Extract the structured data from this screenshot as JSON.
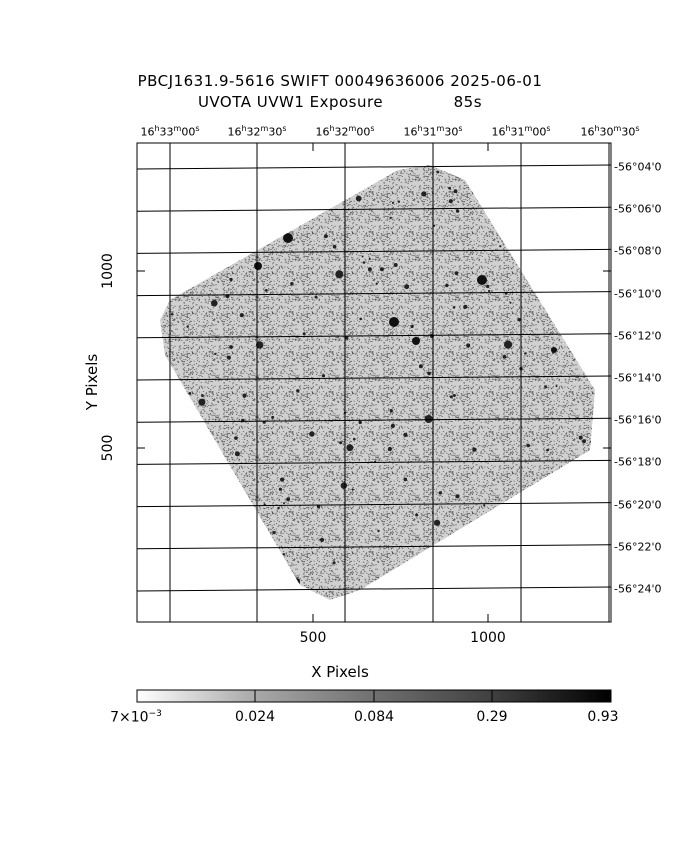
{
  "header": {
    "line1": "PBCJ1631.9-5616 SWIFT 00049636006 2025-06-01",
    "instrument": "UVOTA UVW1 Exposure",
    "exposure": "85s"
  },
  "ra_axis": {
    "ticks": [
      {
        "h": "16",
        "m": "33",
        "s": "00"
      },
      {
        "h": "16",
        "m": "32",
        "s": "30"
      },
      {
        "h": "16",
        "m": "32",
        "s": "00"
      },
      {
        "h": "16",
        "m": "31",
        "s": "30"
      },
      {
        "h": "16",
        "m": "31",
        "s": "00"
      },
      {
        "h": "16",
        "m": "30",
        "s": "30"
      }
    ]
  },
  "dec_axis": {
    "ticks": [
      "-56°04'0",
      "-56°06'0",
      "-56°08'0",
      "-56°10'0",
      "-56°12'0",
      "-56°14'0",
      "-56°16'0",
      "-56°18'0",
      "-56°20'0",
      "-56°22'0",
      "-56°24'0"
    ]
  },
  "x_axis": {
    "label": "X Pixels",
    "ticks": [
      "500",
      "1000"
    ]
  },
  "y_axis": {
    "label": "Y Pixels",
    "ticks": [
      "1000",
      "500"
    ]
  },
  "colorbar": {
    "ticks": [
      "0.024",
      "0.084",
      "0.29",
      "0.93"
    ],
    "min_mantissa": "7×10",
    "min_exponent": "−3"
  },
  "colors": {
    "foreground": "#000000",
    "background": "#ffffff"
  }
}
